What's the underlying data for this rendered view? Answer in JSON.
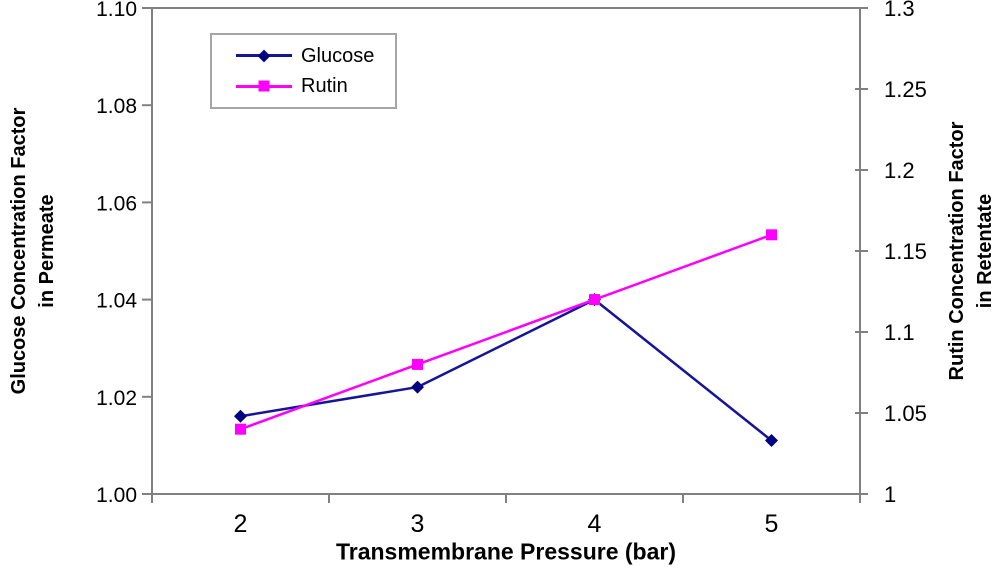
{
  "chart_data": {
    "type": "line",
    "grid": false,
    "plot_frame_color": "#808080",
    "x_axis": {
      "title": "Transmembrane Pressure (bar)",
      "categories": [
        "2",
        "3",
        "4",
        "5"
      ]
    },
    "left_axis": {
      "title_line1": "Glucose Concentration Factor",
      "title_line2": "in Permeate",
      "min": 1.0,
      "max": 1.1,
      "ticks": [
        {
          "label": "1.10",
          "value": 1.1
        },
        {
          "label": "1.08",
          "value": 1.08
        },
        {
          "label": "1.06",
          "value": 1.06
        },
        {
          "label": "1.04",
          "value": 1.04
        },
        {
          "label": "1.02",
          "value": 1.02
        },
        {
          "label": "1.00",
          "value": 1.0
        }
      ]
    },
    "right_axis": {
      "title_line1": "Rutin Concentration Factor",
      "title_line2": "in Retentate",
      "min": 1.0,
      "max": 1.3,
      "ticks": [
        {
          "label": "1.3",
          "value": 1.3
        },
        {
          "label": "1.25",
          "value": 1.25
        },
        {
          "label": "1.2",
          "value": 1.2
        },
        {
          "label": "1.15",
          "value": 1.15
        },
        {
          "label": "1.1",
          "value": 1.1
        },
        {
          "label": "1.05",
          "value": 1.05
        },
        {
          "label": "1",
          "value": 1.0
        }
      ]
    },
    "series": [
      {
        "name": "Glucose",
        "axis": "left",
        "marker": "diamond",
        "line_color": "#151599",
        "marker_color": "#000080",
        "values": [
          1.016,
          1.022,
          1.04,
          1.011
        ]
      },
      {
        "name": "Rutin",
        "axis": "right",
        "marker": "square",
        "line_color": "#FF00FF",
        "marker_color": "#FF00FF",
        "values": [
          1.04,
          1.08,
          1.12,
          1.16
        ]
      }
    ],
    "legend": {
      "position": "top-left-inside"
    }
  }
}
